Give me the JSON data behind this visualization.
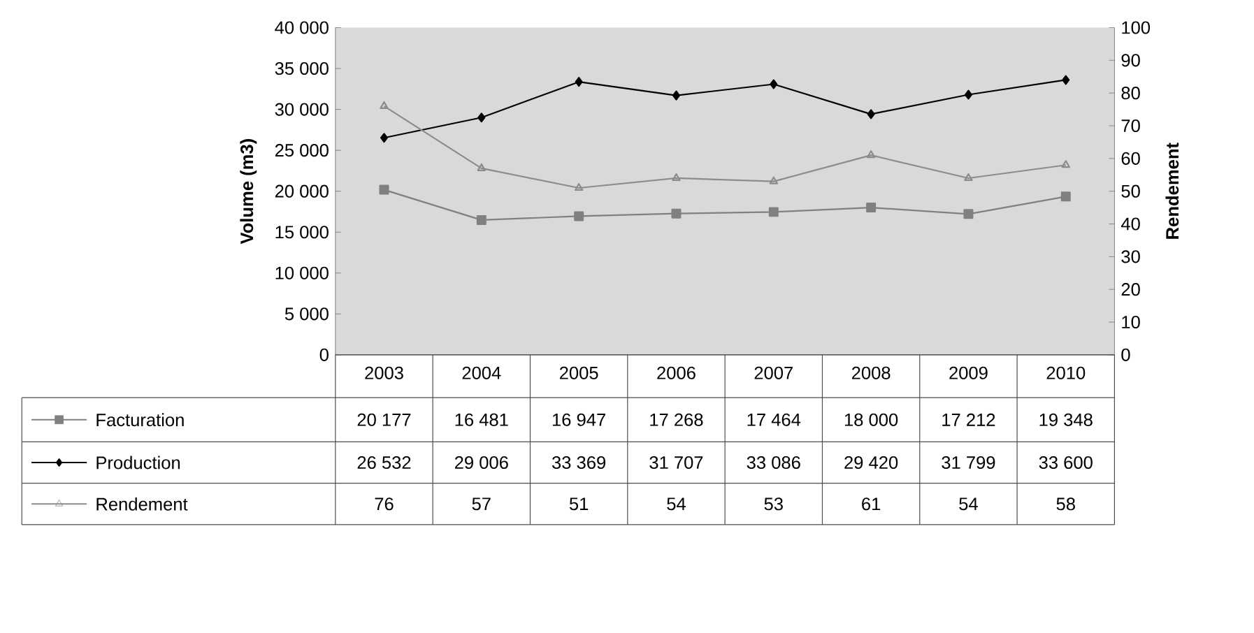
{
  "chart_data": {
    "type": "line",
    "ylabel": "Volume (m3)",
    "y2label": "Rendement",
    "categories": [
      "2003",
      "2004",
      "2005",
      "2006",
      "2007",
      "2008",
      "2009",
      "2010"
    ],
    "series": [
      {
        "name": "Facturation",
        "color": "#808080",
        "marker": "square",
        "values": [
          20177,
          16481,
          16947,
          17268,
          17464,
          18000,
          17212,
          19348
        ],
        "value_labels": [
          "20 177",
          "16 481",
          "16 947",
          "17 268",
          "17 464",
          "18 000",
          "17 212",
          "19 348"
        ]
      },
      {
        "name": "Production",
        "color": "#000000",
        "marker": "diamond",
        "values": [
          26532,
          29006,
          33369,
          31707,
          33086,
          29420,
          31799,
          33600
        ],
        "value_labels": [
          "26 532",
          "29 006",
          "33 369",
          "31 707",
          "33 086",
          "29 420",
          "31 799",
          "33 600"
        ]
      },
      {
        "name": "Rendement",
        "color": "#8c8c8c",
        "marker": "triangle",
        "axis": "y2",
        "values": [
          76,
          57,
          51,
          54,
          53,
          61,
          54,
          58
        ],
        "value_labels": [
          "76",
          "57",
          "51",
          "54",
          "53",
          "61",
          "54",
          "58"
        ]
      }
    ],
    "ylim": [
      0,
      40000
    ],
    "yticks": [
      0,
      {
        "value": 5000,
        "label": "5 000"
      },
      {
        "value": 10000,
        "label": "10 000"
      },
      {
        "value": 15000,
        "label": "15 000"
      },
      {
        "value": 20000,
        "label": "20 000"
      },
      {
        "value": 25000,
        "label": "25 000"
      },
      {
        "value": 30000,
        "label": "30 000"
      },
      {
        "value": 35000,
        "label": "35 000"
      },
      {
        "value": 40000,
        "label": "40 000"
      }
    ],
    "y2lim": [
      0,
      100
    ],
    "y2ticks": [
      0,
      10,
      20,
      30,
      40,
      50,
      60,
      70,
      80,
      90,
      100
    ],
    "grid": false,
    "legend": "bottom"
  }
}
